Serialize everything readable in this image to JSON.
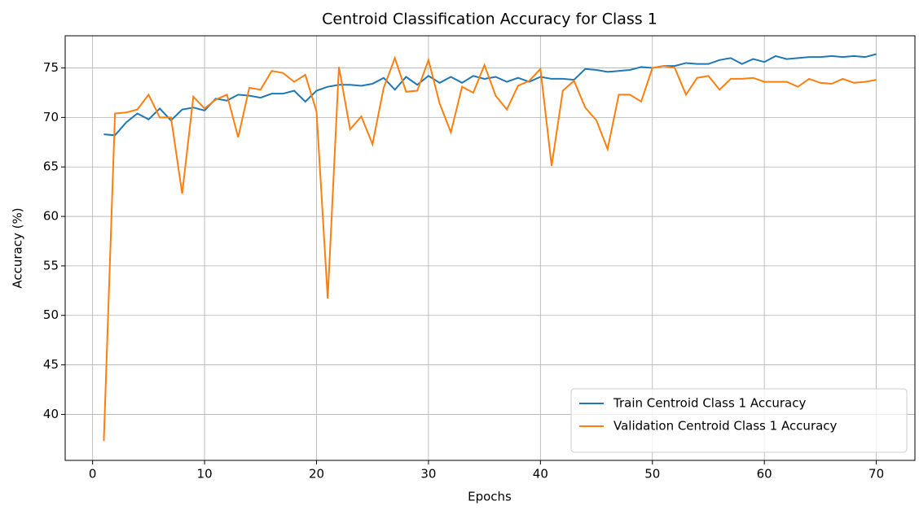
{
  "chart_data": {
    "type": "line",
    "title": "Centroid Classification Accuracy for Class 1",
    "xlabel": "Epochs",
    "ylabel": "Accuracy (%)",
    "x": [
      1,
      2,
      3,
      4,
      5,
      6,
      7,
      8,
      9,
      10,
      11,
      12,
      13,
      14,
      15,
      16,
      17,
      18,
      19,
      20,
      21,
      22,
      23,
      24,
      25,
      26,
      27,
      28,
      29,
      30,
      31,
      32,
      33,
      34,
      35,
      36,
      37,
      38,
      39,
      40,
      41,
      42,
      43,
      44,
      45,
      46,
      47,
      48,
      49,
      50,
      51,
      52,
      53,
      54,
      55,
      56,
      57,
      58,
      59,
      60,
      61,
      62,
      63,
      64,
      65,
      66,
      67,
      68,
      69,
      70
    ],
    "series": [
      {
        "name": "Train Centroid Class 1 Accuracy",
        "color": "#1f77b4",
        "values": [
          68.3,
          68.2,
          69.5,
          70.4,
          69.8,
          70.9,
          69.7,
          70.8,
          71.0,
          70.7,
          71.9,
          71.7,
          72.3,
          72.2,
          72.0,
          72.4,
          72.4,
          72.7,
          71.6,
          72.7,
          73.1,
          73.3,
          73.3,
          73.2,
          73.4,
          74.0,
          72.8,
          74.1,
          73.3,
          74.2,
          73.5,
          74.1,
          73.5,
          74.2,
          73.9,
          74.1,
          73.6,
          74.0,
          73.6,
          74.1,
          73.9,
          73.9,
          73.8,
          74.9,
          74.8,
          74.6,
          74.7,
          74.8,
          75.1,
          75.0,
          75.2,
          75.2,
          75.5,
          75.4,
          75.4,
          75.8,
          76.0,
          75.4,
          75.9,
          75.6,
          76.2,
          75.9,
          76.0,
          76.1,
          76.1,
          76.2,
          76.1,
          76.2,
          76.1,
          76.4
        ]
      },
      {
        "name": "Validation Centroid Class 1 Accuracy",
        "color": "#ff7f0e",
        "values": [
          37.3,
          70.4,
          70.5,
          70.8,
          72.3,
          70.0,
          70.0,
          62.3,
          72.1,
          70.9,
          71.8,
          72.3,
          68.0,
          73.0,
          72.8,
          74.7,
          74.5,
          73.6,
          74.3,
          70.6,
          51.7,
          75.1,
          68.8,
          70.1,
          67.3,
          73.0,
          76.0,
          72.6,
          72.7,
          75.8,
          71.4,
          68.5,
          73.1,
          72.5,
          75.3,
          72.2,
          70.8,
          73.2,
          73.7,
          74.9,
          65.1,
          72.7,
          73.7,
          71.0,
          69.7,
          66.8,
          72.3,
          72.3,
          71.6,
          75.0,
          75.2,
          75.0,
          72.3,
          74.0,
          74.2,
          72.8,
          73.9,
          73.9,
          74.0,
          73.6,
          73.6,
          73.6,
          73.1,
          73.9,
          73.5,
          73.4,
          73.9,
          73.5,
          73.6,
          73.8
        ]
      }
    ],
    "xlim": [
      -2.45,
      73.45
    ],
    "xticks": [
      0,
      10,
      20,
      30,
      40,
      50,
      60,
      70
    ],
    "ylim": [
      35.35,
      78.25
    ],
    "yticks": [
      40,
      45,
      50,
      55,
      60,
      65,
      70,
      75
    ],
    "grid": true,
    "legend": "lower right"
  }
}
